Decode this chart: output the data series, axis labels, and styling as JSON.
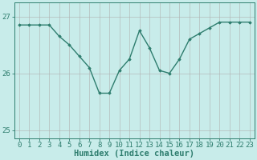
{
  "x": [
    0,
    1,
    2,
    3,
    4,
    5,
    6,
    7,
    8,
    9,
    10,
    11,
    12,
    13,
    14,
    15,
    16,
    17,
    18,
    19,
    20,
    21,
    22,
    23
  ],
  "y": [
    26.85,
    26.85,
    26.85,
    26.85,
    26.65,
    26.5,
    26.3,
    26.1,
    25.65,
    25.65,
    26.05,
    26.25,
    26.75,
    26.45,
    26.05,
    26.0,
    26.25,
    26.6,
    26.7,
    26.8,
    26.9,
    26.9,
    26.9,
    26.9
  ],
  "line_color": "#2e7d6e",
  "marker": "D",
  "marker_size": 1.8,
  "bg_color": "#c8ecea",
  "grid_color": "#b0b0b0",
  "axis_label_color": "#2e7d6e",
  "tick_color": "#2e7d6e",
  "xlabel": "Humidex (Indice chaleur)",
  "xlim": [
    -0.5,
    23.5
  ],
  "ylim": [
    24.85,
    27.25
  ],
  "yticks": [
    25,
    26,
    27
  ],
  "xticks": [
    0,
    1,
    2,
    3,
    4,
    5,
    6,
    7,
    8,
    9,
    10,
    11,
    12,
    13,
    14,
    15,
    16,
    17,
    18,
    19,
    20,
    21,
    22,
    23
  ],
  "xlabel_fontsize": 7.5,
  "tick_fontsize": 6.5,
  "linewidth": 1.0
}
